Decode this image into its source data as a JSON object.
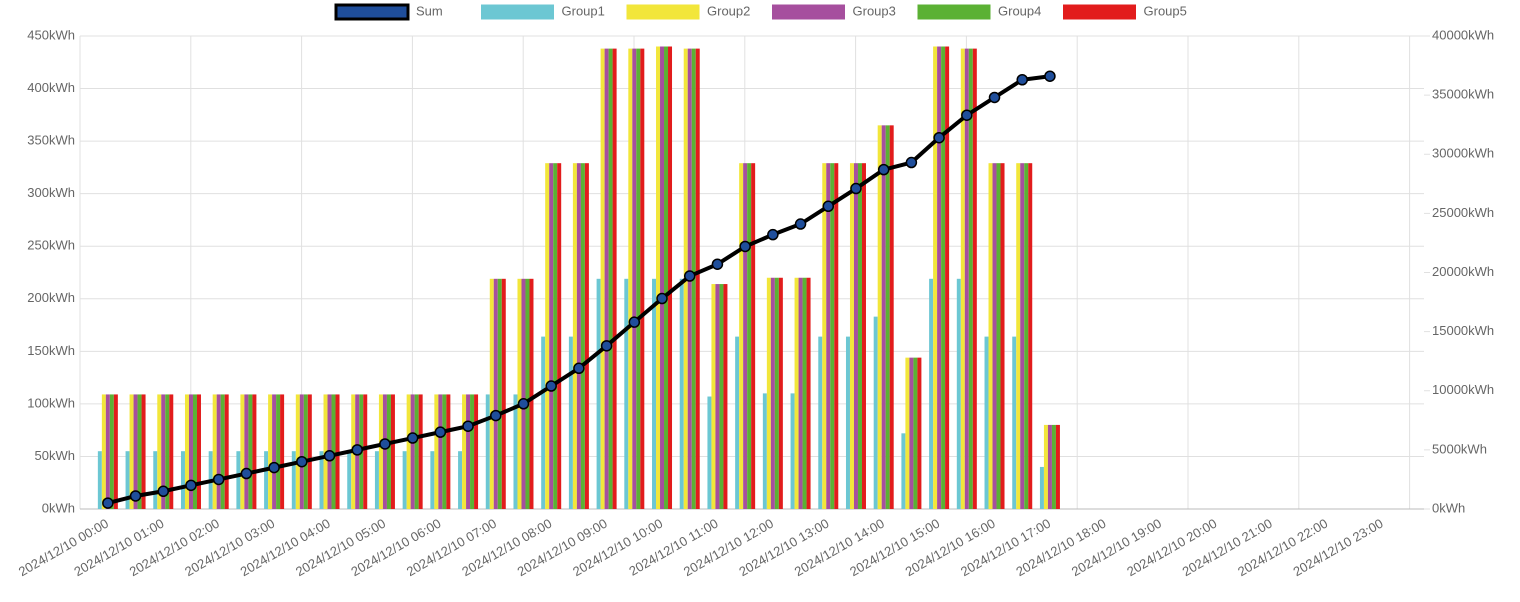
{
  "chart_data": {
    "type": "bar",
    "categories": [
      "2024/12/10 00:00",
      null,
      "2024/12/10 01:00",
      null,
      "2024/12/10 02:00",
      null,
      "2024/12/10 03:00",
      null,
      "2024/12/10 04:00",
      null,
      "2024/12/10 05:00",
      null,
      "2024/12/10 06:00",
      null,
      "2024/12/10 07:00",
      null,
      "2024/12/10 08:00",
      null,
      "2024/12/10 09:00",
      null,
      "2024/12/10 10:00",
      null,
      "2024/12/10 11:00",
      null,
      "2024/12/10 12:00",
      null,
      "2024/12/10 13:00",
      null,
      "2024/12/10 14:00",
      null,
      "2024/12/10 15:00",
      null,
      "2024/12/10 16:00",
      null,
      "2024/12/10 17:00",
      null,
      "2024/12/10 18:00",
      null,
      "2024/12/10 19:00",
      null,
      "2024/12/10 20:00",
      null,
      "2024/12/10 21:00",
      null,
      "2024/12/10 22:00",
      null,
      "2024/12/10 23:00",
      null
    ],
    "series": [
      {
        "name": "Sum",
        "type": "line",
        "axis": "y2",
        "color": "#1f4e9b",
        "values": [
          500,
          1100,
          1500,
          2000,
          2500,
          3000,
          3500,
          4000,
          4500,
          5000,
          5500,
          6000,
          6500,
          7000,
          7900,
          8900,
          10400,
          11900,
          13800,
          15800,
          17800,
          19700,
          20700,
          22200,
          23200,
          24100,
          25600,
          27100,
          28700,
          29300,
          31400,
          33300,
          34800,
          36300,
          36600,
          null,
          null,
          null,
          null,
          null,
          null,
          null,
          null,
          null,
          null,
          null,
          null,
          null
        ]
      },
      {
        "name": "Group1",
        "color": "#6cc7d3",
        "values": [
          55,
          55,
          55,
          55,
          55,
          55,
          55,
          55,
          55,
          55,
          55,
          55,
          55,
          55,
          109,
          109,
          164,
          164,
          219,
          219,
          219,
          219,
          107,
          164,
          110,
          110,
          164,
          164,
          183,
          72,
          219,
          219,
          164,
          164,
          40,
          null,
          null,
          null,
          null,
          null,
          null,
          null,
          null,
          null,
          null,
          null,
          null,
          null
        ]
      },
      {
        "name": "Group2",
        "color": "#f2e63a",
        "values": [
          109,
          109,
          109,
          109,
          109,
          109,
          109,
          109,
          109,
          109,
          109,
          109,
          109,
          109,
          219,
          219,
          329,
          329,
          438,
          438,
          440,
          438,
          214,
          329,
          220,
          220,
          329,
          329,
          365,
          144,
          440,
          438,
          329,
          329,
          80,
          null,
          null,
          null,
          null,
          null,
          null,
          null,
          null,
          null,
          null,
          null,
          null,
          null
        ]
      },
      {
        "name": "Group3",
        "color": "#a64f9e",
        "values": [
          109,
          109,
          109,
          109,
          109,
          109,
          109,
          109,
          109,
          109,
          109,
          109,
          109,
          109,
          219,
          219,
          329,
          329,
          438,
          438,
          440,
          438,
          214,
          329,
          220,
          220,
          329,
          329,
          365,
          144,
          440,
          438,
          329,
          329,
          80,
          null,
          null,
          null,
          null,
          null,
          null,
          null,
          null,
          null,
          null,
          null,
          null,
          null
        ]
      },
      {
        "name": "Group4",
        "color": "#5bb134",
        "values": [
          109,
          109,
          109,
          109,
          109,
          109,
          109,
          109,
          109,
          109,
          109,
          109,
          109,
          109,
          219,
          219,
          329,
          329,
          438,
          438,
          440,
          438,
          214,
          329,
          220,
          220,
          329,
          329,
          365,
          144,
          440,
          438,
          329,
          329,
          80,
          null,
          null,
          null,
          null,
          null,
          null,
          null,
          null,
          null,
          null,
          null,
          null,
          null
        ]
      },
      {
        "name": "Group5",
        "color": "#e21c1c",
        "values": [
          109,
          109,
          109,
          109,
          109,
          109,
          109,
          109,
          109,
          109,
          109,
          109,
          109,
          109,
          219,
          219,
          329,
          329,
          438,
          438,
          440,
          438,
          214,
          329,
          220,
          220,
          329,
          329,
          365,
          144,
          440,
          438,
          329,
          329,
          80,
          null,
          null,
          null,
          null,
          null,
          null,
          null,
          null,
          null,
          null,
          null,
          null,
          null
        ]
      }
    ],
    "ylim": [
      0,
      450
    ],
    "yticks": [
      {
        "value": 0,
        "label": "0kWh"
      },
      {
        "value": 50,
        "label": "50kWh"
      },
      {
        "value": 100,
        "label": "100kWh"
      },
      {
        "value": 150,
        "label": "150kWh"
      },
      {
        "value": 200,
        "label": "200kWh"
      },
      {
        "value": 250,
        "label": "250kWh"
      },
      {
        "value": 300,
        "label": "300kWh"
      },
      {
        "value": 350,
        "label": "350kWh"
      },
      {
        "value": 400,
        "label": "400kWh"
      },
      {
        "value": 450,
        "label": "450kWh"
      }
    ],
    "y2lim": [
      0,
      40000
    ],
    "y2ticks": [
      {
        "value": 0,
        "label": "0kWh"
      },
      {
        "value": 5000,
        "label": "5000kWh"
      },
      {
        "value": 10000,
        "label": "10000kWh"
      },
      {
        "value": 15000,
        "label": "15000kWh"
      },
      {
        "value": 20000,
        "label": "20000kWh"
      },
      {
        "value": 25000,
        "label": "25000kWh"
      },
      {
        "value": 30000,
        "label": "30000kWh"
      },
      {
        "value": 35000,
        "label": "35000kWh"
      },
      {
        "value": 40000,
        "label": "40000kWh"
      }
    ],
    "grid": true,
    "legend": "top"
  }
}
